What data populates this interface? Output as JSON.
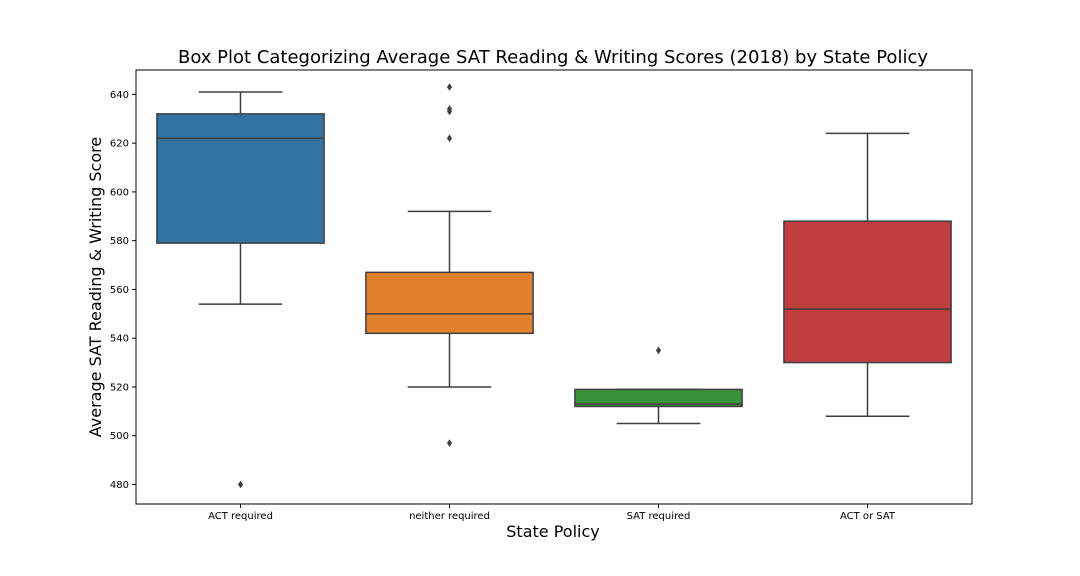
{
  "chart_data": {
    "type": "box",
    "title": "Box Plot Categorizing Average SAT Reading & Writing Scores (2018) by State Policy",
    "xlabel": "State Policy",
    "ylabel": "Average SAT Reading & Writing Score",
    "ylim": [
      472,
      650
    ],
    "yticks": [
      480,
      500,
      520,
      540,
      560,
      580,
      600,
      620,
      640
    ],
    "grid": false,
    "legend": "none",
    "categories": [
      "ACT required",
      "neither required",
      "SAT required",
      "ACT or SAT"
    ],
    "boxes": [
      {
        "category": "ACT required",
        "color": "#3274a1",
        "whisker_low": 554,
        "q1": 579,
        "median": 622,
        "q3": 632,
        "whisker_high": 641,
        "outliers": [
          480
        ]
      },
      {
        "category": "neither required",
        "color": "#e1812c",
        "whisker_low": 520,
        "q1": 542,
        "median": 550,
        "q3": 567,
        "whisker_high": 592,
        "outliers": [
          643,
          634,
          633,
          622,
          497
        ]
      },
      {
        "category": "SAT required",
        "color": "#3a923a",
        "whisker_low": 505,
        "q1": 512,
        "median": 513,
        "q3": 519,
        "whisker_high": 519,
        "outliers": [
          535
        ]
      },
      {
        "category": "ACT or SAT",
        "color": "#c03d3e",
        "whisker_low": 508,
        "q1": 530,
        "median": 552,
        "q3": 588,
        "whisker_high": 624,
        "outliers": []
      }
    ]
  }
}
